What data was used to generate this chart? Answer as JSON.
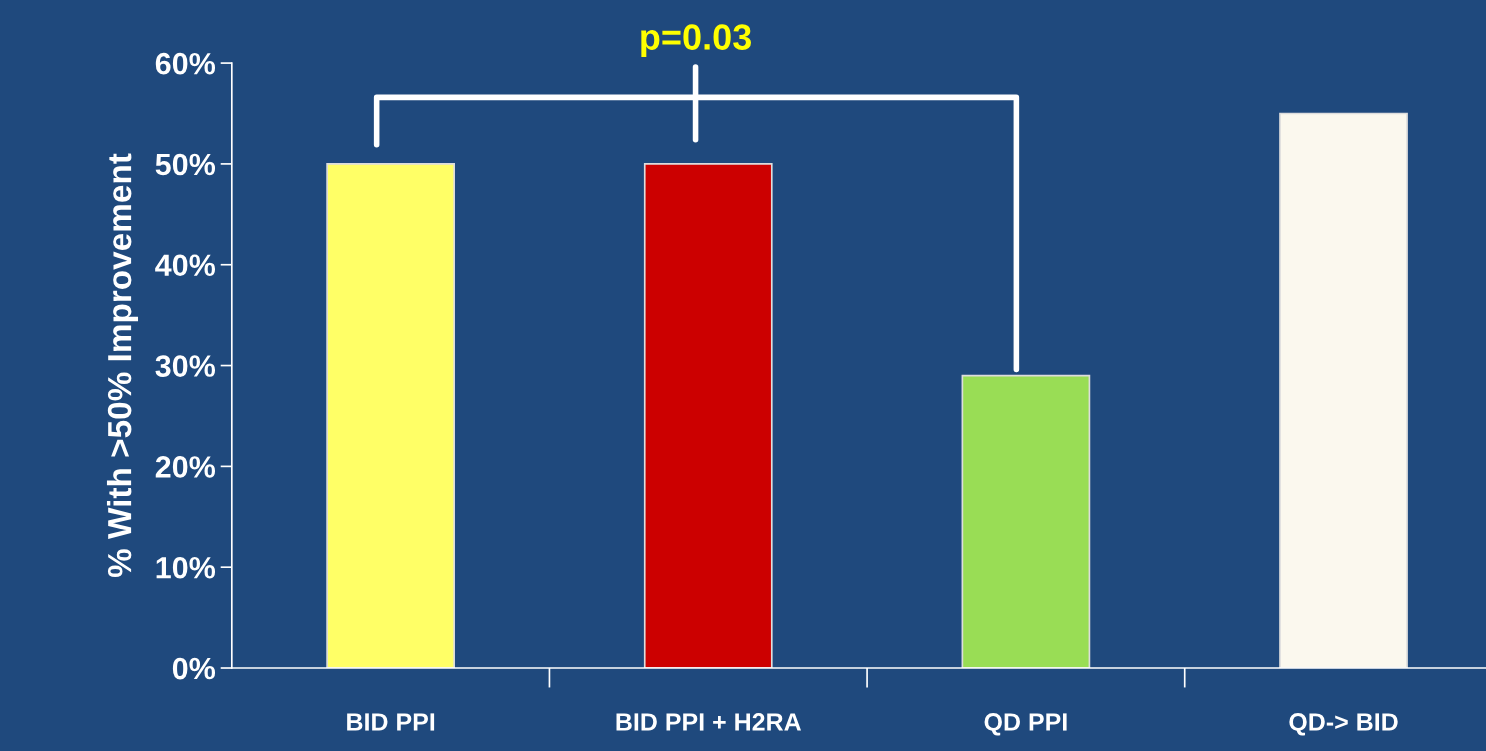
{
  "chart_data": {
    "type": "bar",
    "ylabel": "% With >50% Improvement",
    "categories": [
      "BID PPI",
      "BID PPI + H2RA",
      "QD PPI",
      "QD-> BID"
    ],
    "values": [
      50,
      50,
      29,
      55
    ],
    "colors": [
      "#ffff66",
      "#cc0000",
      "#99dd55",
      "#fbf8ee"
    ],
    "ylim": [
      0,
      60
    ],
    "yticks": [
      {
        "value": 0,
        "label": "0%"
      },
      {
        "value": 10,
        "label": "10%"
      },
      {
        "value": 20,
        "label": "20%"
      },
      {
        "value": 30,
        "label": "30%"
      },
      {
        "value": 40,
        "label": "40%"
      },
      {
        "value": 50,
        "label": "50%"
      },
      {
        "value": 60,
        "label": "60%"
      }
    ],
    "grid": false,
    "legend": false,
    "annotations": [
      "p=0.03"
    ]
  }
}
